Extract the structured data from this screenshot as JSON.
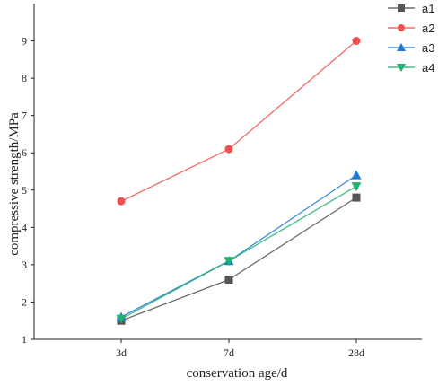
{
  "chart_data": {
    "type": "line",
    "categories": [
      "3d",
      "7d",
      "28d"
    ],
    "series": [
      {
        "name": "a1",
        "values": [
          1.5,
          2.6,
          4.8
        ],
        "color": "#555555",
        "marker": "square"
      },
      {
        "name": "a2",
        "values": [
          4.7,
          6.1,
          9.0
        ],
        "color": "#f05050",
        "marker": "circle"
      },
      {
        "name": "a3",
        "values": [
          1.6,
          3.1,
          5.4
        ],
        "color": "#1e78d8",
        "marker": "triangle-up"
      },
      {
        "name": "a4",
        "values": [
          1.55,
          3.1,
          5.1
        ],
        "color": "#20b070",
        "marker": "triangle-down"
      }
    ],
    "xlabel": "conservation age/d",
    "ylabel": "compressive strength/MPa",
    "ylim": [
      1,
      10
    ],
    "yticks": [
      "1",
      "2",
      "3",
      "4",
      "5",
      "6",
      "7",
      "8",
      "9"
    ],
    "grid": false,
    "legend_position": "top-right"
  }
}
